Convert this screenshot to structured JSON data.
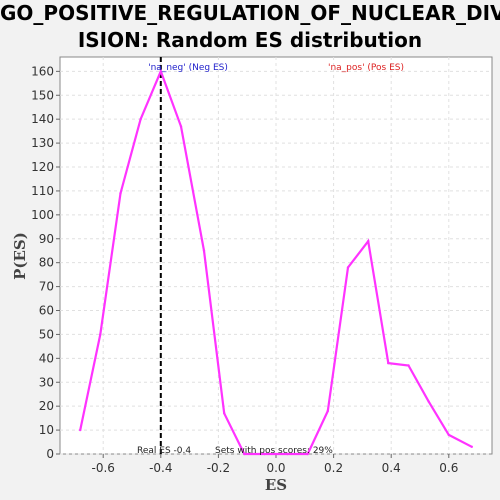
{
  "chart_data": {
    "type": "line",
    "title_lines": [
      "GO_POSITIVE_REGULATION_OF_NUCLEAR_DIV",
      "ISION: Random ES distribution"
    ],
    "xlabel": "ES",
    "ylabel": "P(ES)",
    "xlim": [
      -0.75,
      0.75
    ],
    "ylim": [
      0,
      166
    ],
    "xticks": [
      -0.6,
      -0.4,
      -0.2,
      0.0,
      0.2,
      0.4,
      0.6
    ],
    "xtick_labels": [
      "-0.6",
      "-0.4",
      "-0.2",
      "0.0",
      "0.2",
      "0.4",
      "0.6"
    ],
    "yticks": [
      0,
      10,
      20,
      30,
      40,
      50,
      60,
      70,
      80,
      90,
      100,
      110,
      120,
      130,
      140,
      150,
      160
    ],
    "grid": true,
    "series": [
      {
        "color": "#ff33ff",
        "x": [
          -0.68,
          -0.61,
          -0.54,
          -0.47,
          -0.4,
          -0.33,
          -0.25,
          -0.18,
          -0.11,
          -0.04,
          0.04,
          0.11,
          0.18,
          0.25,
          0.32,
          0.39,
          0.46,
          0.53,
          0.6,
          0.68
        ],
        "y": [
          10,
          50,
          109,
          140,
          160,
          137,
          85,
          17,
          0,
          0,
          0,
          0,
          18,
          78,
          89,
          38,
          37,
          22,
          8,
          3
        ]
      }
    ],
    "real_es": -0.4,
    "annotations": {
      "neg_label": "'na_neg' (Neg ES)",
      "neg_color": "#2222cc",
      "pos_label": "'na_pos' (Pos ES)",
      "pos_color": "#dd2222",
      "real_es_text": "Real ES -0.4",
      "pos_scores_text": "Sets with pos scores: 29%"
    }
  }
}
